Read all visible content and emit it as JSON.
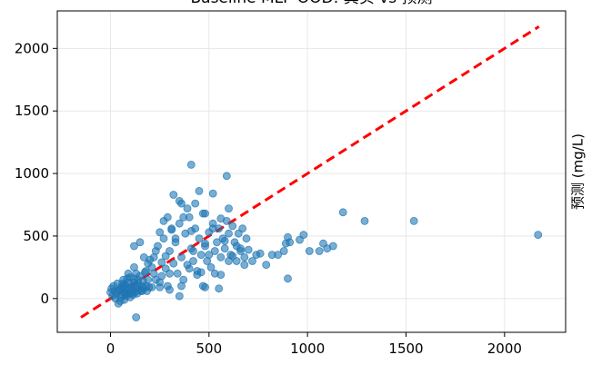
{
  "chart_data": {
    "type": "scatter",
    "title": "Baseline MLP OOD: 真实 vs 预测",
    "xlabel": "",
    "ylabel": "预测 (mg/L)",
    "xlim": [
      -270,
      2310
    ],
    "ylim": [
      -270,
      2300
    ],
    "xticks": [
      0,
      500,
      1000,
      1500,
      2000
    ],
    "yticks": [
      0,
      500,
      1000,
      1500,
      2000
    ],
    "grid": true,
    "reference_line": {
      "style": "dashed",
      "color": "#ff0000",
      "from": [
        -150,
        -150
      ],
      "to": [
        2175,
        2175
      ]
    },
    "colors": {
      "points": "#1f77b4",
      "reference": "#ff0000"
    },
    "points": [
      [
        0,
        50
      ],
      [
        5,
        80
      ],
      [
        10,
        20
      ],
      [
        15,
        100
      ],
      [
        20,
        60
      ],
      [
        25,
        0
      ],
      [
        30,
        40
      ],
      [
        35,
        120
      ],
      [
        40,
        -40
      ],
      [
        45,
        70
      ],
      [
        50,
        10
      ],
      [
        55,
        90
      ],
      [
        60,
        30
      ],
      [
        65,
        150
      ],
      [
        70,
        50
      ],
      [
        75,
        110
      ],
      [
        80,
        20
      ],
      [
        85,
        70
      ],
      [
        90,
        130
      ],
      [
        95,
        40
      ],
      [
        100,
        80
      ],
      [
        105,
        60
      ],
      [
        110,
        100
      ],
      [
        115,
        30
      ],
      [
        120,
        160
      ],
      [
        125,
        50
      ],
      [
        130,
        90
      ],
      [
        135,
        40
      ],
      [
        140,
        120
      ],
      [
        145,
        70
      ],
      [
        150,
        180
      ],
      [
        155,
        60
      ],
      [
        160,
        100
      ],
      [
        165,
        140
      ],
      [
        170,
        80
      ],
      [
        175,
        210
      ],
      [
        180,
        100
      ],
      [
        185,
        60
      ],
      [
        190,
        150
      ],
      [
        195,
        90
      ],
      [
        60,
        120
      ],
      [
        70,
        -10
      ],
      [
        80,
        40
      ],
      [
        90,
        200
      ],
      [
        100,
        170
      ],
      [
        110,
        70
      ],
      [
        120,
        250
      ],
      [
        130,
        -150
      ],
      [
        140,
        90
      ],
      [
        40,
        60
      ],
      [
        200,
        310
      ],
      [
        210,
        90
      ],
      [
        220,
        330
      ],
      [
        230,
        150
      ],
      [
        240,
        420
      ],
      [
        250,
        90
      ],
      [
        260,
        180
      ],
      [
        270,
        480
      ],
      [
        280,
        240
      ],
      [
        290,
        100
      ],
      [
        300,
        380
      ],
      [
        310,
        560
      ],
      [
        320,
        280
      ],
      [
        330,
        450
      ],
      [
        340,
        200
      ],
      [
        350,
        600
      ],
      [
        360,
        330
      ],
      [
        370,
        150
      ],
      [
        380,
        520
      ],
      [
        390,
        270
      ],
      [
        400,
        650
      ],
      [
        410,
        400
      ],
      [
        420,
        300
      ],
      [
        430,
        560
      ],
      [
        440,
        220
      ],
      [
        450,
        480
      ],
      [
        460,
        350
      ],
      [
        470,
        680
      ],
      [
        480,
        420
      ],
      [
        490,
        300
      ],
      [
        500,
        530
      ],
      [
        510,
        250
      ],
      [
        520,
        600
      ],
      [
        530,
        380
      ],
      [
        540,
        450
      ],
      [
        550,
        560
      ],
      [
        560,
        330
      ],
      [
        570,
        480
      ],
      [
        580,
        400
      ],
      [
        590,
        620
      ],
      [
        600,
        520
      ],
      [
        610,
        350
      ],
      [
        620,
        580
      ],
      [
        630,
        450
      ],
      [
        640,
        300
      ],
      [
        650,
        520
      ],
      [
        660,
        400
      ],
      [
        670,
        560
      ],
      [
        680,
        330
      ],
      [
        690,
        480
      ],
      [
        250,
        530
      ],
      [
        270,
        620
      ],
      [
        290,
        650
      ],
      [
        310,
        550
      ],
      [
        330,
        480
      ],
      [
        350,
        780
      ],
      [
        370,
        650
      ],
      [
        390,
        720
      ],
      [
        410,
        540
      ],
      [
        430,
        760
      ],
      [
        320,
        830
      ],
      [
        360,
        760
      ],
      [
        410,
        1070
      ],
      [
        450,
        860
      ],
      [
        480,
        680
      ],
      [
        520,
        840
      ],
      [
        590,
        980
      ],
      [
        520,
        560
      ],
      [
        560,
        640
      ],
      [
        600,
        720
      ],
      [
        120,
        420
      ],
      [
        150,
        450
      ],
      [
        170,
        330
      ],
      [
        190,
        280
      ],
      [
        210,
        250
      ],
      [
        230,
        380
      ],
      [
        260,
        290
      ],
      [
        280,
        340
      ],
      [
        300,
        200
      ],
      [
        350,
        20
      ],
      [
        400,
        240
      ],
      [
        420,
        380
      ],
      [
        440,
        190
      ],
      [
        460,
        210
      ],
      [
        480,
        440
      ],
      [
        500,
        350
      ],
      [
        530,
        200
      ],
      [
        550,
        80
      ],
      [
        560,
        190
      ],
      [
        580,
        460
      ],
      [
        600,
        300
      ],
      [
        620,
        340
      ],
      [
        640,
        420
      ],
      [
        660,
        380
      ],
      [
        680,
        270
      ],
      [
        700,
        390
      ],
      [
        720,
        300
      ],
      [
        740,
        350
      ],
      [
        760,
        360
      ],
      [
        790,
        270
      ],
      [
        820,
        350
      ],
      [
        850,
        350
      ],
      [
        880,
        380
      ],
      [
        890,
        440
      ],
      [
        900,
        490
      ],
      [
        910,
        450
      ],
      [
        900,
        160
      ],
      [
        960,
        470
      ],
      [
        980,
        510
      ],
      [
        1010,
        380
      ],
      [
        1060,
        380
      ],
      [
        1080,
        440
      ],
      [
        1100,
        400
      ],
      [
        1130,
        420
      ],
      [
        1180,
        690
      ],
      [
        1290,
        620
      ],
      [
        1540,
        620
      ],
      [
        2170,
        510
      ],
      [
        470,
        100
      ],
      [
        480,
        90
      ],
      [
        360,
        100
      ],
      [
        300,
        70
      ],
      [
        250,
        130
      ],
      [
        220,
        200
      ],
      [
        180,
        220
      ],
      [
        160,
        60
      ],
      [
        140,
        150
      ],
      [
        130,
        200
      ],
      [
        60,
        90
      ],
      [
        70,
        110
      ],
      [
        50,
        -20
      ],
      [
        90,
        50
      ],
      [
        100,
        10
      ],
      [
        110,
        40
      ],
      [
        120,
        130
      ],
      [
        85,
        160
      ],
      [
        75,
        30
      ],
      [
        65,
        100
      ]
    ]
  }
}
